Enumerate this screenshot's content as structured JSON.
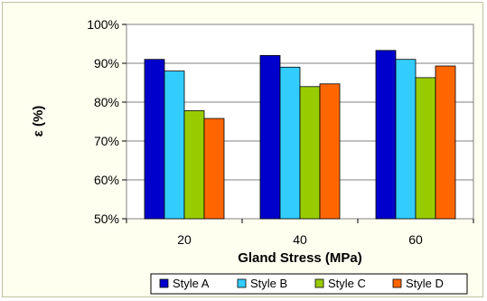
{
  "chart_data": {
    "type": "bar",
    "title": "",
    "xlabel": "Gland Stress (MPa)",
    "ylabel": "ε (%)",
    "categories": [
      "20",
      "40",
      "60"
    ],
    "series": [
      {
        "name": "Style A",
        "color": "#0000cc",
        "values": [
          91,
          92,
          93.3
        ]
      },
      {
        "name": "Style B",
        "color": "#33ccff",
        "values": [
          88,
          89,
          91
        ]
      },
      {
        "name": "Style C",
        "color": "#99cc00",
        "values": [
          77.8,
          84,
          86.3
        ]
      },
      {
        "name": "Style D",
        "color": "#ff6600",
        "values": [
          75.8,
          84.7,
          89.3
        ]
      }
    ],
    "ylim": [
      50,
      100
    ],
    "yticks": [
      "50%",
      "60%",
      "70%",
      "80%",
      "90%",
      "100%"
    ],
    "ytick_values": [
      50,
      60,
      70,
      80,
      90,
      100
    ],
    "grid": true,
    "legend_position": "bottom"
  }
}
